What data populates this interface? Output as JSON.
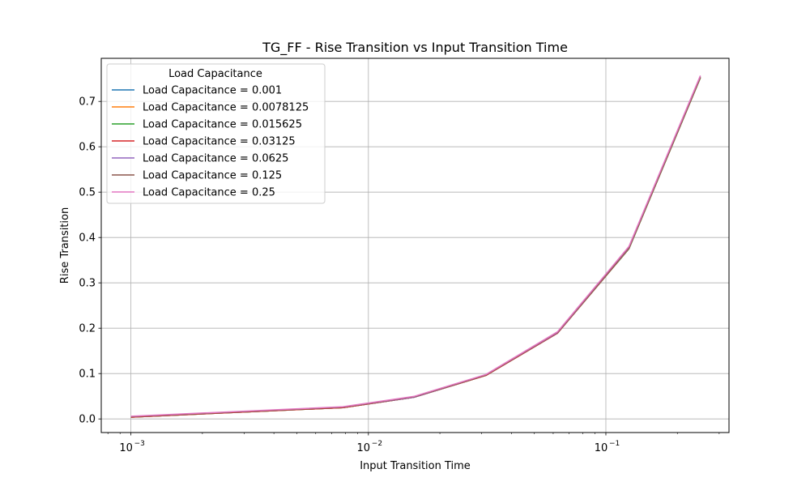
{
  "chart_data": {
    "type": "line",
    "title": "TG_FF - Rise Transition vs Input Transition Time",
    "xlabel": "Input Transition Time",
    "ylabel": "Rise Transition",
    "xscale": "log",
    "xlim": [
      0.00075,
      0.33
    ],
    "ylim": [
      -0.03,
      0.795
    ],
    "x_ticks": [
      {
        "value": 0.001,
        "base": "10",
        "exp": "−3"
      },
      {
        "value": 0.01,
        "base": "10",
        "exp": "−2"
      },
      {
        "value": 0.1,
        "base": "10",
        "exp": "−1"
      }
    ],
    "y_ticks": [
      {
        "value": 0.0,
        "label": "0.0"
      },
      {
        "value": 0.1,
        "label": "0.1"
      },
      {
        "value": 0.2,
        "label": "0.2"
      },
      {
        "value": 0.3,
        "label": "0.3"
      },
      {
        "value": 0.4,
        "label": "0.4"
      },
      {
        "value": 0.5,
        "label": "0.5"
      },
      {
        "value": 0.6,
        "label": "0.6"
      },
      {
        "value": 0.7,
        "label": "0.7"
      }
    ],
    "grid": true,
    "legend": {
      "title": "Load Capacitance",
      "placement": "top-left"
    },
    "x": [
      0.001,
      0.0078125,
      0.015625,
      0.03125,
      0.0625,
      0.125,
      0.25
    ],
    "series": [
      {
        "name": "Load Capacitance = 0.001",
        "color": "#1f77b4",
        "values": [
          0.004,
          0.025,
          0.048,
          0.096,
          0.189,
          0.375,
          0.752
        ]
      },
      {
        "name": "Load Capacitance = 0.0078125",
        "color": "#ff7f0e",
        "values": [
          0.004,
          0.025,
          0.048,
          0.096,
          0.189,
          0.375,
          0.752
        ]
      },
      {
        "name": "Load Capacitance = 0.015625",
        "color": "#2ca02c",
        "values": [
          0.004,
          0.025,
          0.048,
          0.096,
          0.189,
          0.375,
          0.752
        ]
      },
      {
        "name": "Load Capacitance = 0.03125",
        "color": "#d62728",
        "values": [
          0.004,
          0.025,
          0.048,
          0.096,
          0.189,
          0.376,
          0.753
        ]
      },
      {
        "name": "Load Capacitance = 0.0625",
        "color": "#9467bd",
        "values": [
          0.005,
          0.026,
          0.048,
          0.097,
          0.19,
          0.377,
          0.754
        ]
      },
      {
        "name": "Load Capacitance = 0.125",
        "color": "#8c564b",
        "values": [
          0.005,
          0.026,
          0.049,
          0.097,
          0.191,
          0.378,
          0.755
        ]
      },
      {
        "name": "Load Capacitance = 0.25",
        "color": "#e377c2",
        "values": [
          0.006,
          0.027,
          0.05,
          0.098,
          0.192,
          0.38,
          0.757
        ]
      }
    ]
  }
}
